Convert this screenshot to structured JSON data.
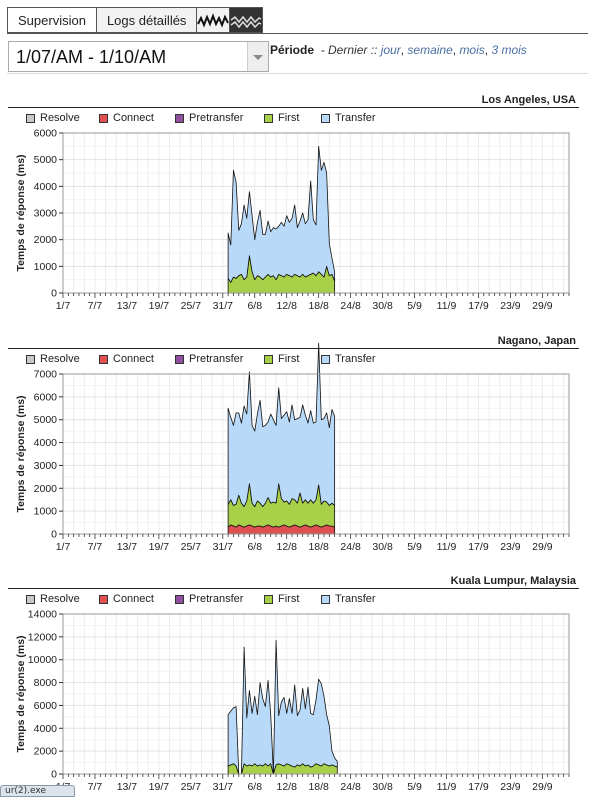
{
  "tabs": [
    {
      "label": "Supervision"
    },
    {
      "label": "Logs détaillés"
    }
  ],
  "range_select": {
    "value": "1/07/AM - 1/10/AM"
  },
  "periode": {
    "label": "Période",
    "prefix": "- Dernier ::",
    "links": [
      "jour",
      "semaine",
      "mois",
      "3 mois"
    ]
  },
  "colors": {
    "resolve": "#c8c8c8",
    "connect": "#e05050",
    "pretransfer": "#9050a0",
    "first": "#a8d048",
    "transfer": "#b8daf8"
  },
  "taskbar": {
    "label": "ur(2).exe"
  },
  "chart_data": [
    {
      "type": "area",
      "title": "Los Angeles, USA",
      "ylabel": "Temps de réponse (ms)",
      "ylim": [
        0,
        6000
      ],
      "yticks": [
        0,
        1000,
        2000,
        3000,
        4000,
        5000,
        6000
      ],
      "xticklabels": [
        "1/7",
        "7/7",
        "13/7",
        "19/7",
        "25/7",
        "31/7",
        "6/8",
        "12/8",
        "18/8",
        "24/8",
        "30/8",
        "5/9",
        "11/9",
        "17/9",
        "23/9",
        "29/9"
      ],
      "legend": [
        "Resolve",
        "Connect",
        "Pretransfer",
        "First",
        "Transfer"
      ],
      "grid": true,
      "x_day_start": 31,
      "x_day_step": 0.5,
      "series": [
        {
          "name": "First",
          "values": [
            550,
            400,
            600,
            550,
            650,
            700,
            500,
            600,
            1400,
            800,
            500,
            650,
            600,
            500,
            600,
            700,
            600,
            650,
            500,
            700,
            650,
            600,
            700,
            650,
            600,
            700,
            650,
            600,
            700,
            600,
            650,
            700,
            750,
            650,
            800,
            700,
            600,
            1000,
            650,
            700,
            450
          ]
        },
        {
          "name": "Transfer",
          "values": [
            1700,
            1400,
            4000,
            3600,
            1700,
            1900,
            2800,
            2200,
            2400,
            2100,
            1500,
            2000,
            2500,
            1700,
            1600,
            2000,
            1700,
            1800,
            1900,
            1800,
            2000,
            1900,
            2200,
            2000,
            2200,
            2600,
            1800,
            2100,
            2300,
            2000,
            2100,
            3500,
            2000,
            1900,
            4700,
            3900,
            4300,
            3500,
            1200,
            600,
            350
          ]
        }
      ]
    },
    {
      "type": "area",
      "title": "Nagano, Japan",
      "ylabel": "Temps de réponse (ms)",
      "ylim": [
        0,
        7000
      ],
      "yticks": [
        0,
        1000,
        2000,
        3000,
        4000,
        5000,
        6000,
        7000
      ],
      "xticklabels": [
        "1/7",
        "7/7",
        "13/7",
        "19/7",
        "25/7",
        "31/7",
        "6/8",
        "12/8",
        "18/8",
        "24/8",
        "30/8",
        "5/9",
        "11/9",
        "17/9",
        "23/9",
        "29/9"
      ],
      "legend": [
        "Resolve",
        "Connect",
        "Pretransfer",
        "First",
        "Transfer"
      ],
      "grid": true,
      "x_day_start": 31,
      "x_day_step": 0.5,
      "series": [
        {
          "name": "Connect",
          "values": [
            300,
            400,
            350,
            300,
            400,
            350,
            300,
            350,
            400,
            350,
            300,
            350,
            350,
            300,
            350,
            400,
            350,
            300,
            350,
            300,
            350,
            400,
            350,
            300,
            350,
            400,
            350,
            300,
            350,
            400,
            350,
            300,
            350,
            400,
            350,
            300,
            350,
            400,
            350,
            350,
            300
          ]
        },
        {
          "name": "First",
          "values": [
            1000,
            1100,
            900,
            1000,
            1300,
            1000,
            900,
            1100,
            1800,
            1000,
            900,
            1100,
            1000,
            900,
            1000,
            1200,
            1000,
            1100,
            1000,
            1900,
            1200,
            1000,
            1100,
            1000,
            1200,
            1100,
            1000,
            1500,
            1000,
            1100,
            1000,
            1200,
            1000,
            1100,
            1800,
            1000,
            1100,
            1000,
            900,
            1000,
            950
          ]
        },
        {
          "name": "Transfer",
          "values": [
            4200,
            3600,
            3500,
            4000,
            3600,
            3500,
            4400,
            3800,
            4900,
            3400,
            3300,
            3800,
            4500,
            3500,
            3400,
            3300,
            3900,
            3600,
            3400,
            4200,
            3500,
            3800,
            3900,
            3600,
            4100,
            3500,
            3700,
            3300,
            4300,
            3700,
            3500,
            3900,
            3500,
            3400,
            6200,
            3700,
            3600,
            3900,
            3400,
            4100,
            3900
          ]
        }
      ]
    },
    {
      "type": "area",
      "title": "Kuala Lumpur, Malaysia",
      "ylabel": "Temps de réponse (ms)",
      "ylim": [
        0,
        14000
      ],
      "yticks": [
        0,
        2000,
        4000,
        6000,
        8000,
        10000,
        12000,
        14000
      ],
      "xticklabels": [
        "1/7",
        "7/7",
        "13/7",
        "19/7",
        "25/7",
        "31/7",
        "6/8",
        "12/8",
        "18/8",
        "24/8",
        "30/8",
        "5/9",
        "11/9",
        "17/9",
        "23/9",
        "29/9"
      ],
      "legend": [
        "Resolve",
        "Connect",
        "Pretransfer",
        "First",
        "Transfer"
      ],
      "grid": true,
      "x_day_start": 31,
      "x_day_step": 0.5,
      "series": [
        {
          "name": "First",
          "values": [
            700,
            800,
            900,
            700,
            0,
            0,
            900,
            700,
            800,
            700,
            900,
            700,
            800,
            700,
            900,
            700,
            900,
            0,
            800,
            900,
            800,
            700,
            900,
            800,
            700,
            600,
            800,
            700,
            900,
            700,
            800,
            600,
            700,
            900,
            800,
            700,
            900,
            800,
            700,
            800,
            700,
            600
          ]
        },
        {
          "name": "Transfer",
          "values": [
            4500,
            4700,
            4900,
            5200,
            0,
            0,
            10200,
            4200,
            6500,
            4600,
            5900,
            4500,
            7200,
            5900,
            5000,
            7500,
            4300,
            0,
            10900,
            4200,
            5500,
            6000,
            4400,
            5800,
            4600,
            7200,
            4300,
            4900,
            6600,
            5000,
            6800,
            4700,
            4500,
            5600,
            7500,
            7200,
            5900,
            4400,
            3500,
            1200,
            700,
            500
          ]
        }
      ]
    }
  ]
}
